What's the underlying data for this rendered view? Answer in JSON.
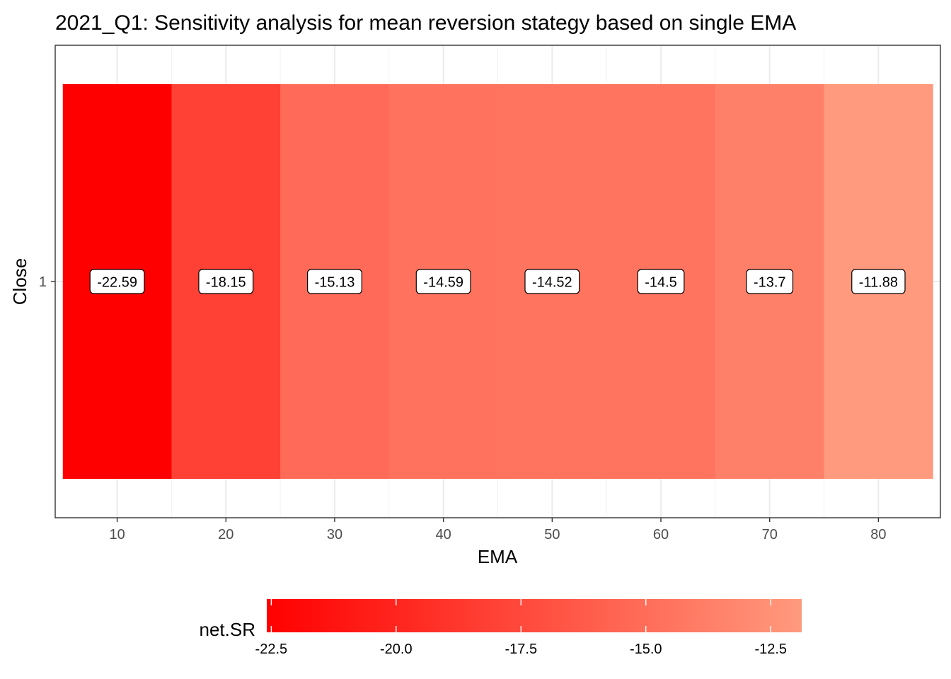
{
  "chart_data": {
    "type": "heatmap",
    "title": "2021_Q1: Sensitivity analysis for mean reversion stategy based on single EMA",
    "xlabel": "EMA",
    "ylabel": "Close",
    "x": [
      10,
      20,
      30,
      40,
      50,
      60,
      70,
      80
    ],
    "y": [
      1
    ],
    "values": [
      -22.59,
      -18.15,
      -15.13,
      -14.59,
      -14.52,
      -14.5,
      -13.7,
      -11.88
    ],
    "labels": [
      "-22.59",
      "-18.15",
      "-15.13",
      "-14.59",
      "-14.52",
      "-14.5",
      "-13.7",
      "-11.88"
    ],
    "xlim": [
      4.3,
      85.7
    ],
    "x_ticks": [
      10,
      20,
      30,
      40,
      50,
      60,
      70,
      80
    ],
    "x_tick_labels": [
      "10",
      "20",
      "30",
      "40",
      "50",
      "60",
      "70",
      "80"
    ],
    "y_tick_labels": [
      "1"
    ],
    "grid": true,
    "legend": {
      "title": "net.SR",
      "position": "bottom",
      "min": -22.59,
      "max": -11.88,
      "ticks": [
        -22.5,
        -20.0,
        -17.5,
        -15.0,
        -12.5
      ],
      "tick_labels": [
        "-22.5",
        "-20.0",
        "-17.5",
        "-15.0",
        "-12.5"
      ],
      "color_low": "#ff0000",
      "color_high": "#ff9a7e"
    }
  }
}
